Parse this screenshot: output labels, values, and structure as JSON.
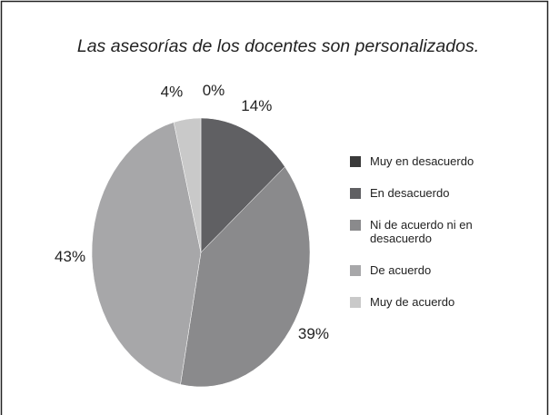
{
  "chart_data": {
    "type": "pie",
    "title": "Las asesorías de los docentes son personalizados.",
    "categories": [
      "Muy en desacuerdo",
      "En desacuerdo",
      "Ni de acuerdo ni en desacuerdo",
      "De acuerdo",
      "Muy de acuerdo"
    ],
    "values": [
      0,
      14,
      39,
      43,
      4
    ],
    "value_labels": [
      "0%",
      "14%",
      "39%",
      "43%",
      "4%"
    ],
    "colors": [
      "#3a3a3a",
      "#606063",
      "#8a8a8c",
      "#a7a7a9",
      "#c9c9c9"
    ],
    "legend": "right"
  }
}
